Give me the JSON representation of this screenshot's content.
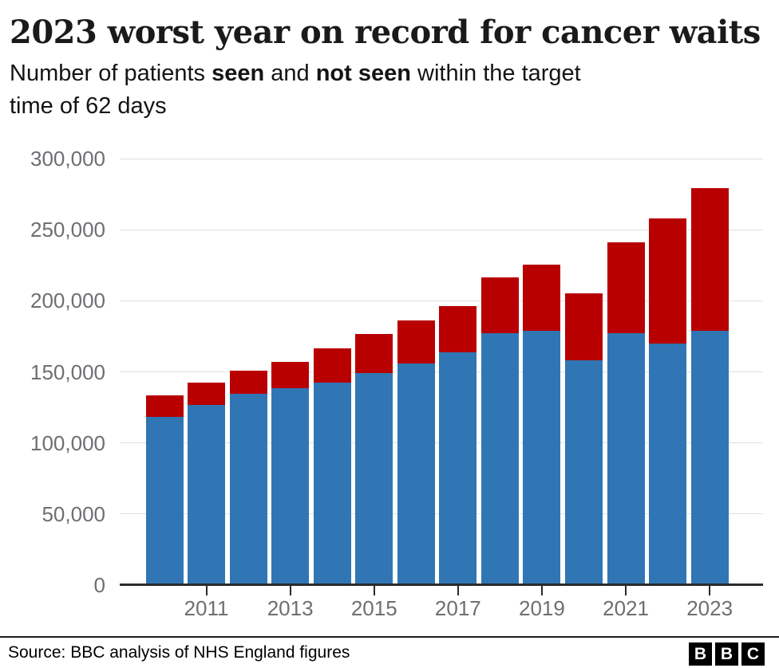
{
  "header": {
    "title": "2023 worst year on record for cancer waits",
    "subtitle": {
      "prefix": "Number of patients ",
      "seen_label": "seen",
      "and_word": " and ",
      "not_seen_label": "not seen",
      "suffix": " within the target",
      "line2": "time of 62 days"
    }
  },
  "chart_data": {
    "type": "bar",
    "stacked": true,
    "title": "Number of patients seen and not seen within the target time of 62 days",
    "xlabel": "",
    "ylabel": "",
    "ylim": [
      0,
      300000
    ],
    "grid": "horizontal",
    "legend_position": "none",
    "categories": [
      "2010",
      "2011",
      "2012",
      "2013",
      "2014",
      "2015",
      "2016",
      "2017",
      "2018",
      "2019",
      "2020",
      "2021",
      "2022",
      "2023"
    ],
    "series": [
      {
        "name": "seen",
        "color": "#3076B5",
        "values": [
          118500,
          126500,
          134500,
          138500,
          142500,
          149000,
          156000,
          164000,
          177000,
          179000,
          158000,
          177000,
          170000,
          179000
        ]
      },
      {
        "name": "not seen",
        "color": "#B80000",
        "values": [
          15000,
          16000,
          16500,
          18500,
          24000,
          27500,
          30000,
          32000,
          39500,
          46500,
          47500,
          64000,
          88000,
          100000
        ]
      }
    ],
    "yticks": [
      {
        "value": 300000,
        "label": "300,000"
      },
      {
        "value": 250000,
        "label": "250,000"
      },
      {
        "value": 200000,
        "label": "200,000"
      },
      {
        "value": 150000,
        "label": "150,000"
      },
      {
        "value": 100000,
        "label": "100,000"
      },
      {
        "value": 50000,
        "label": "50,000"
      },
      {
        "value": 0,
        "label": "0"
      }
    ],
    "xticks": [
      {
        "index": 1,
        "label": "2011"
      },
      {
        "index": 3,
        "label": "2013"
      },
      {
        "index": 5,
        "label": "2015"
      },
      {
        "index": 7,
        "label": "2017"
      },
      {
        "index": 9,
        "label": "2019"
      },
      {
        "index": 11,
        "label": "2021"
      },
      {
        "index": 13,
        "label": "2023"
      }
    ]
  },
  "colors": {
    "seen_text": "#3076B5",
    "not_seen_text": "#B80000",
    "axis": "#2b2b2b",
    "grid": "#e0e0e0",
    "tick_label": "#6e6e73"
  },
  "footer": {
    "source": "Source: BBC analysis of NHS England figures",
    "logo_letters": [
      "B",
      "B",
      "C"
    ]
  }
}
